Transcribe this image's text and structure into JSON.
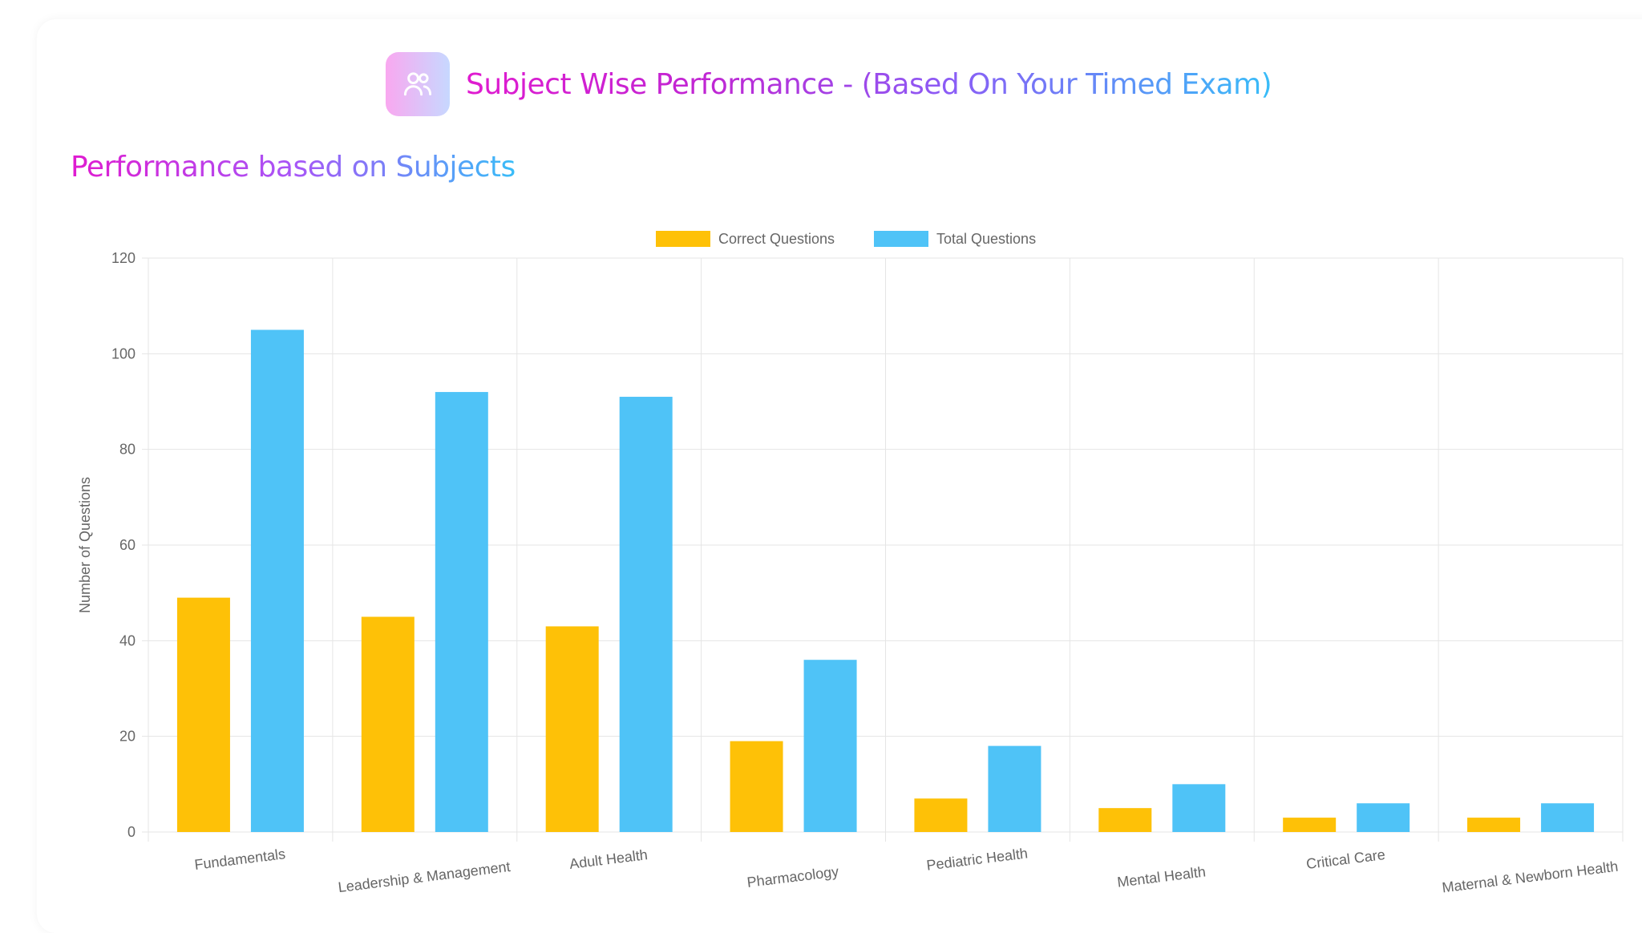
{
  "header": {
    "title": "Subject Wise Performance - (Based On Your Timed Exam)",
    "icon": "users-icon"
  },
  "section": {
    "title": "Performance based on Subjects"
  },
  "chart_data": {
    "type": "bar",
    "title": "",
    "xlabel": "",
    "ylabel": "Number of Questions",
    "ylim": [
      0,
      120
    ],
    "yticks": [
      0,
      20,
      40,
      60,
      80,
      100,
      120
    ],
    "grid": true,
    "legend_position": "top",
    "categories": [
      "Fundamentals",
      "Leadership & Management",
      "Adult Health",
      "Pharmacology",
      "Pediatric Health",
      "Mental Health",
      "Critical Care",
      "Maternal & Newborn Health"
    ],
    "series": [
      {
        "name": "Correct Questions",
        "color": "#fec107",
        "values": [
          49,
          45,
          43,
          19,
          7,
          5,
          3,
          3
        ]
      },
      {
        "name": "Total Questions",
        "color": "#4fc3f7",
        "values": [
          105,
          92,
          91,
          36,
          18,
          10,
          6,
          6
        ]
      }
    ]
  }
}
